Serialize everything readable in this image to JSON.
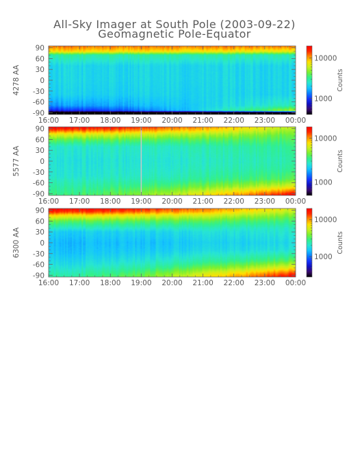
{
  "figure": {
    "title": "All-Sky Imager at South Pole (2003-09-22)",
    "subtitle": "Geomagnetic Pole-Equator"
  },
  "colors": {
    "colormap": [
      "#000000",
      "#3a0a70",
      "#1010c0",
      "#1432ff",
      "#0a7dff",
      "#14c3ff",
      "#28e6d2",
      "#32f08c",
      "#78f032",
      "#c8f01e",
      "#ffe000",
      "#ff8c00",
      "#ff2800",
      "#ff0000"
    ],
    "data_gap_line": "#c8c8c8"
  },
  "chart_data": [
    {
      "type": "heatmap",
      "ylabel": "4278 AA",
      "colorbar_label": "Counts",
      "colorbar_ticks": [
        1000,
        10000
      ],
      "colorbar_tick_labels": [
        "1000",
        "10000"
      ],
      "colorbar_range": [
        400,
        20000
      ],
      "colorbar_scale": "log",
      "x_tick_labels": [
        "16:00",
        "17:00",
        "18:00",
        "19:00",
        "20:00",
        "21:00",
        "22:00",
        "23:00",
        "00:00"
      ],
      "y_ticks": [
        90,
        60,
        30,
        0,
        -30,
        -60,
        -90
      ],
      "y_tick_labels": [
        "90",
        "60",
        "30",
        "0",
        "-30",
        "-60",
        "-90"
      ],
      "ylim": [
        -95,
        95
      ],
      "data_gap_time": null,
      "profile_start": [
        [
          -95,
          300
        ],
        [
          -90,
          300
        ],
        [
          -84,
          900
        ],
        [
          -70,
          1500
        ],
        [
          -40,
          2000
        ],
        [
          0,
          2100
        ],
        [
          40,
          2100
        ],
        [
          70,
          3000
        ],
        [
          80,
          8000
        ],
        [
          95,
          12000
        ]
      ],
      "profile_end": [
        [
          -95,
          300
        ],
        [
          -90,
          300
        ],
        [
          -84,
          5500
        ],
        [
          -70,
          2800
        ],
        [
          -40,
          2100
        ],
        [
          0,
          2100
        ],
        [
          40,
          2100
        ],
        [
          70,
          2800
        ],
        [
          80,
          7000
        ],
        [
          95,
          12000
        ]
      ]
    },
    {
      "type": "heatmap",
      "ylabel": "5577 AA",
      "colorbar_label": "Counts",
      "colorbar_ticks": [
        1000,
        10000
      ],
      "colorbar_tick_labels": [
        "1000",
        "10000"
      ],
      "colorbar_range": [
        500,
        18000
      ],
      "colorbar_scale": "log",
      "x_tick_labels": [
        "16:00",
        "17:00",
        "18:00",
        "19:00",
        "20:00",
        "21:00",
        "22:00",
        "23:00",
        "00:00"
      ],
      "y_ticks": [
        90,
        60,
        30,
        0,
        -30,
        -60,
        -90
      ],
      "y_tick_labels": [
        "90",
        "60",
        "30",
        "0",
        "-30",
        "-60",
        "-90"
      ],
      "ylim": [
        -95,
        95
      ],
      "data_gap_time": 19.0,
      "profile_start": [
        [
          -95,
          3500
        ],
        [
          -70,
          3100
        ],
        [
          -40,
          2600
        ],
        [
          0,
          2500
        ],
        [
          40,
          2700
        ],
        [
          60,
          4200
        ],
        [
          75,
          7000
        ],
        [
          85,
          12000
        ],
        [
          95,
          18000
        ]
      ],
      "profile_end": [
        [
          -95,
          18000
        ],
        [
          -85,
          12000
        ],
        [
          -70,
          6500
        ],
        [
          -50,
          4000
        ],
        [
          -20,
          3200
        ],
        [
          0,
          3000
        ],
        [
          40,
          3300
        ],
        [
          70,
          4000
        ],
        [
          95,
          5500
        ]
      ]
    },
    {
      "type": "heatmap",
      "ylabel": "6300 AA",
      "colorbar_label": "Counts",
      "colorbar_ticks": [
        1000,
        10000
      ],
      "colorbar_tick_labels": [
        "1000",
        "10000"
      ],
      "colorbar_range": [
        280,
        20000
      ],
      "colorbar_scale": "log",
      "x_tick_labels": [
        "16:00",
        "17:00",
        "18:00",
        "19:00",
        "20:00",
        "21:00",
        "22:00",
        "23:00",
        "00:00"
      ],
      "y_ticks": [
        90,
        60,
        30,
        0,
        -30,
        -60,
        -90
      ],
      "y_tick_labels": [
        "90",
        "60",
        "30",
        "0",
        "-30",
        "-60",
        "-90"
      ],
      "ylim": [
        -95,
        95
      ],
      "data_gap_time": null,
      "profile_start": [
        [
          -95,
          2500
        ],
        [
          -60,
          1800
        ],
        [
          -30,
          1500
        ],
        [
          0,
          1400
        ],
        [
          30,
          1600
        ],
        [
          60,
          3500
        ],
        [
          75,
          7000
        ],
        [
          85,
          14000
        ],
        [
          95,
          20000
        ]
      ],
      "profile_end": [
        [
          -95,
          20000
        ],
        [
          -85,
          14000
        ],
        [
          -70,
          7000
        ],
        [
          -50,
          3500
        ],
        [
          -20,
          2000
        ],
        [
          0,
          1800
        ],
        [
          40,
          2200
        ],
        [
          70,
          3500
        ],
        [
          95,
          6000
        ]
      ]
    }
  ]
}
